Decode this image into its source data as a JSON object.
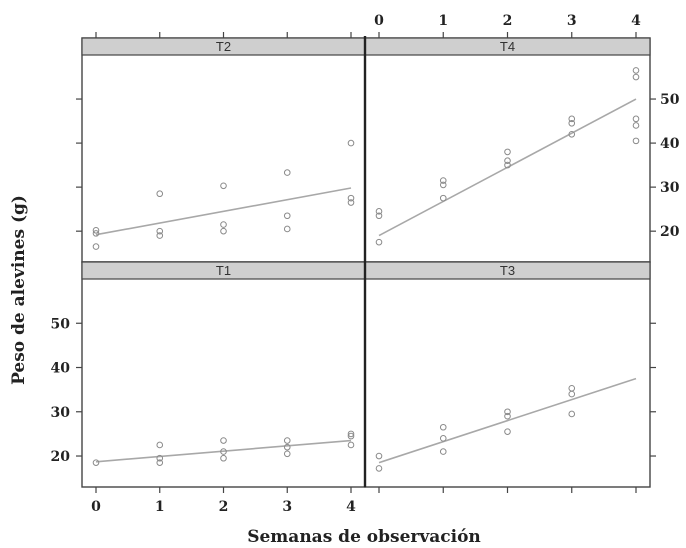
{
  "chart_data": {
    "type": "scatter",
    "layout": "2x2 lattice panels with linear fit lines",
    "xlabel": "Semanas de observación",
    "ylabel": "Peso de alevines (g)",
    "xlim": [
      -0.3,
      4.3
    ],
    "ylim": [
      13,
      60
    ],
    "x_ticks": [
      0,
      1,
      2,
      3,
      4
    ],
    "y_ticks": [
      20,
      30,
      40,
      50
    ],
    "colors": {
      "points": "#8a8a8a",
      "fit_line": "#a8a8a8",
      "strip": "#cfcfcf",
      "frame": "#444444"
    },
    "panels": [
      {
        "label": "T2",
        "position": "top-left",
        "points": [
          [
            0,
            20.2
          ],
          [
            0,
            19.5
          ],
          [
            0,
            16.5
          ],
          [
            1,
            28.5
          ],
          [
            1,
            20
          ],
          [
            1,
            19
          ],
          [
            2,
            30.3
          ],
          [
            2,
            21.5
          ],
          [
            2,
            20
          ],
          [
            3,
            33.3
          ],
          [
            3,
            23.5
          ],
          [
            3,
            20.5
          ],
          [
            4,
            40
          ],
          [
            4,
            27.5
          ],
          [
            4,
            26.5
          ]
        ],
        "fit": [
          [
            0,
            19.2
          ],
          [
            4,
            29.8
          ]
        ]
      },
      {
        "label": "T4",
        "position": "top-right",
        "points": [
          [
            0,
            24.5
          ],
          [
            0,
            23.5
          ],
          [
            0,
            17.5
          ],
          [
            1,
            31.5
          ],
          [
            1,
            30.5
          ],
          [
            1,
            27.5
          ],
          [
            2,
            38
          ],
          [
            2,
            36
          ],
          [
            2,
            35
          ],
          [
            3,
            45.5
          ],
          [
            3,
            44.5
          ],
          [
            3,
            42
          ],
          [
            4,
            56.5
          ],
          [
            4,
            55
          ],
          [
            4,
            45.5
          ],
          [
            4,
            44
          ],
          [
            4,
            40.5
          ]
        ],
        "fit": [
          [
            0,
            19
          ],
          [
            4,
            50
          ]
        ]
      },
      {
        "label": "T1",
        "position": "bottom-left",
        "points": [
          [
            0,
            18.5
          ],
          [
            1,
            22.5
          ],
          [
            1,
            19.5
          ],
          [
            1,
            18.5
          ],
          [
            2,
            23.5
          ],
          [
            2,
            21
          ],
          [
            2,
            19.5
          ],
          [
            3,
            23.5
          ],
          [
            3,
            22
          ],
          [
            3,
            20.5
          ],
          [
            4,
            25
          ],
          [
            4,
            24.5
          ],
          [
            4,
            22.5
          ]
        ],
        "fit": [
          [
            0,
            18.7
          ],
          [
            4,
            23.5
          ]
        ]
      },
      {
        "label": "T3",
        "position": "bottom-right",
        "points": [
          [
            0,
            20
          ],
          [
            0,
            17.2
          ],
          [
            1,
            26.5
          ],
          [
            1,
            24
          ],
          [
            1,
            21
          ],
          [
            2,
            30
          ],
          [
            2,
            29
          ],
          [
            2,
            25.5
          ],
          [
            3,
            35.3
          ],
          [
            3,
            34
          ],
          [
            3,
            29.5
          ]
        ],
        "fit": [
          [
            0,
            18.5
          ],
          [
            4,
            37.5
          ]
        ]
      }
    ]
  }
}
